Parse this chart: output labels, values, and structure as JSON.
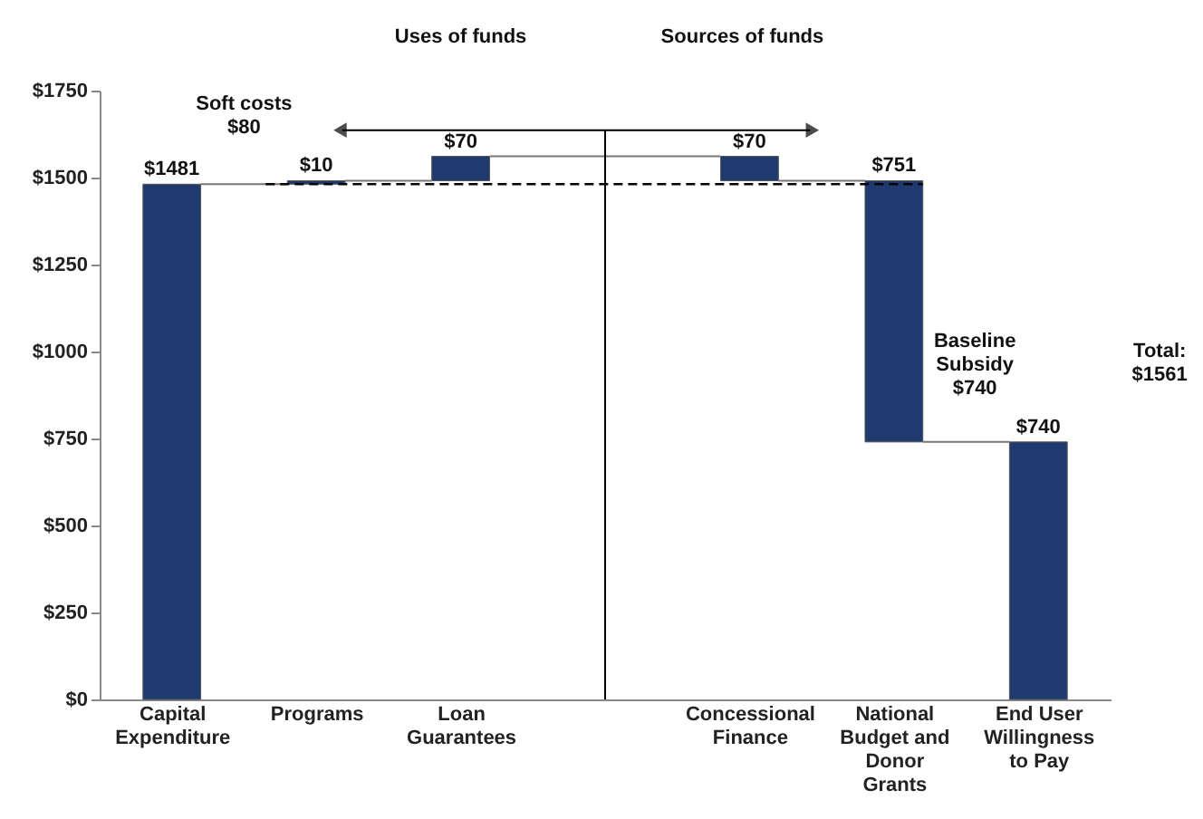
{
  "chart_data": {
    "type": "bar",
    "categories": [
      "Capital Expenditure",
      "Programs",
      "Loan Guarantees",
      null,
      "Concessional Finance",
      "National Budget and Donor Grants",
      "End User Willingness to Pay"
    ],
    "values": [
      1481,
      10,
      70,
      null,
      70,
      751,
      740
    ],
    "base": [
      0,
      1481,
      1491,
      null,
      1491,
      740,
      0
    ],
    "value_labels": [
      "$1481",
      "$10",
      "$70",
      null,
      "$70",
      "$751",
      "$740"
    ],
    "color": "#1f3a6e",
    "ylim": [
      0,
      1750
    ],
    "yticks": [
      {
        "value": 0,
        "label": "$0"
      },
      {
        "value": 250,
        "label": "$250"
      },
      {
        "value": 500,
        "label": "$500"
      },
      {
        "value": 750,
        "label": "$750"
      },
      {
        "value": 1000,
        "label": "$1000"
      },
      {
        "value": 1250,
        "label": "$1250"
      },
      {
        "value": 1500,
        "label": "$1500"
      },
      {
        "value": 1750,
        "label": "$1750"
      }
    ],
    "ref_lines": [
      {
        "axis": "y",
        "value": 1481,
        "line_style": "dashed",
        "color": "#000000"
      },
      {
        "axis": "x",
        "value": null,
        "line_style": "solid",
        "color": "#000000"
      }
    ],
    "annotations": [
      "Uses of funds",
      "Sources of funds",
      "Soft costs $80",
      "Baseline Subsidy $740",
      "Total: $1561"
    ]
  }
}
